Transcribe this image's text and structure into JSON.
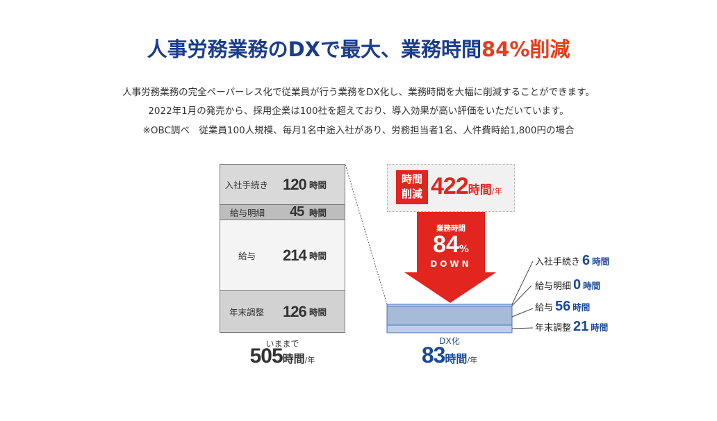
{
  "title": {
    "main": "人事労務業務のDXで最大、業務時間",
    "highlight": "84%削減"
  },
  "description": [
    "人事労務業務の完全ペーパーレス化で従業員が行う業務をDX化し、業務時間を大幅に削減することができます。",
    "2022年1月の発売から、採用企業は100社を超えており、導入効果が高い評価をいただいています。",
    "※OBC調べ　従業員100人規模、毎月1名中途入社があり、労務担当者1名、人件費時給1,800円の場合"
  ],
  "before": {
    "items": [
      {
        "label": "入社手続き",
        "value": "120",
        "unit": "時間"
      },
      {
        "label": "給与明細",
        "value": "45",
        "unit": "時間"
      },
      {
        "label": "給与",
        "value": "214",
        "unit": "時間"
      },
      {
        "label": "年末調整",
        "value": "126",
        "unit": "時間"
      }
    ],
    "caption": "いままで",
    "total": "505",
    "total_unit": "時間",
    "per": "/年"
  },
  "reduction": {
    "badge_line1": "時間",
    "badge_line2": "削減",
    "value": "422",
    "unit": "時間",
    "per": "/年"
  },
  "arrow": {
    "label": "業務時間",
    "value": "84",
    "percent": "%",
    "down": "DOWN"
  },
  "after": {
    "items": [
      {
        "label": "入社手続き",
        "value": "6",
        "unit": "時間"
      },
      {
        "label": "給与明細",
        "value": "0",
        "unit": "時間"
      },
      {
        "label": "給与",
        "value": "56",
        "unit": "時間"
      },
      {
        "label": "年末調整",
        "value": "21",
        "unit": "時間"
      }
    ],
    "caption": "DX化",
    "total": "83",
    "total_unit": "時間",
    "per": "/年"
  },
  "colors": {
    "navy": "#1b3c8c",
    "red": "#e3251f",
    "blue_bar": "#a6bbd8"
  }
}
